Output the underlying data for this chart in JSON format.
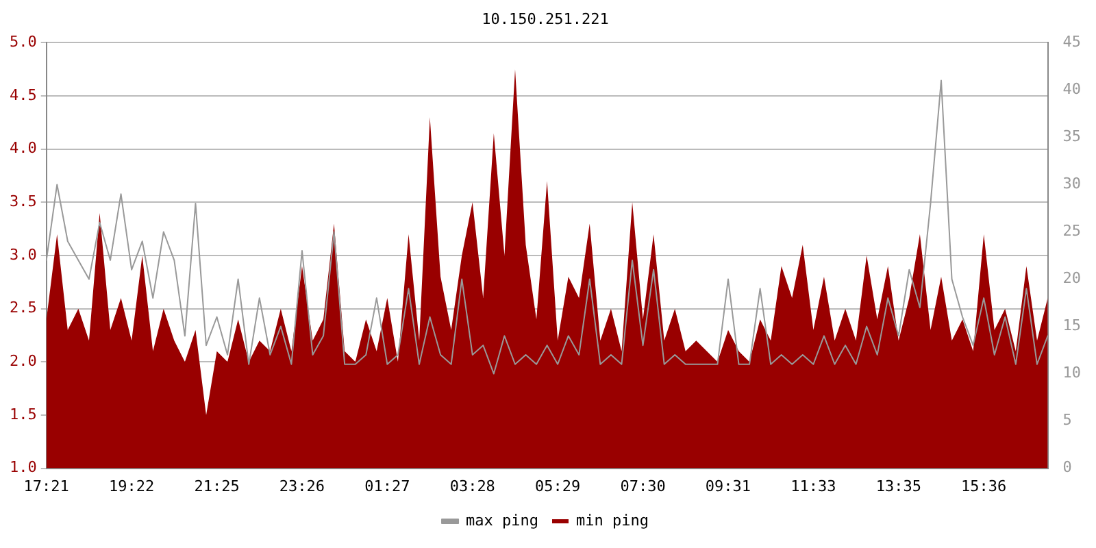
{
  "chart_data": {
    "type": "line",
    "title": "10.150.251.221",
    "categories": [
      "17:21",
      null,
      null,
      null,
      null,
      null,
      null,
      null,
      "19:22",
      null,
      null,
      null,
      null,
      null,
      null,
      null,
      "21:25",
      null,
      null,
      null,
      null,
      null,
      null,
      null,
      "23:26",
      null,
      null,
      null,
      null,
      null,
      null,
      null,
      "01:27",
      null,
      null,
      null,
      null,
      null,
      null,
      null,
      "03:28",
      null,
      null,
      null,
      null,
      null,
      null,
      null,
      "05:29",
      null,
      null,
      null,
      null,
      null,
      null,
      null,
      "07:30",
      null,
      null,
      null,
      null,
      null,
      null,
      null,
      "09:31",
      null,
      null,
      null,
      null,
      null,
      null,
      null,
      "11:33",
      null,
      null,
      null,
      null,
      null,
      null,
      null,
      "13:35",
      null,
      null,
      null,
      null,
      null,
      null,
      null,
      "15:36",
      null,
      null,
      null,
      null,
      null,
      null
    ],
    "series": [
      {
        "name": "min ping",
        "type": "area",
        "color": "#990000",
        "values": [
          2.4,
          3.2,
          2.3,
          2.5,
          2.2,
          3.4,
          2.3,
          2.6,
          2.2,
          3.0,
          2.1,
          2.5,
          2.2,
          2.0,
          2.3,
          1.5,
          2.1,
          2.0,
          2.4,
          2.0,
          2.2,
          2.1,
          2.5,
          2.1,
          2.9,
          2.2,
          2.4,
          3.3,
          2.1,
          2.0,
          2.4,
          2.1,
          2.6,
          2.0,
          3.2,
          2.2,
          4.3,
          2.8,
          2.3,
          3.0,
          3.5,
          2.6,
          4.15,
          3.0,
          4.75,
          3.1,
          2.4,
          3.7,
          2.2,
          2.8,
          2.6,
          3.3,
          2.2,
          2.5,
          2.1,
          3.5,
          2.4,
          3.2,
          2.2,
          2.5,
          2.1,
          2.2,
          2.1,
          2.0,
          2.3,
          2.1,
          2.0,
          2.4,
          2.2,
          2.9,
          2.6,
          3.1,
          2.3,
          2.8,
          2.2,
          2.5,
          2.2,
          3.0,
          2.4,
          2.9,
          2.2,
          2.6,
          3.2,
          2.3,
          2.8,
          2.2,
          2.4,
          2.1,
          3.2,
          2.3,
          2.5,
          2.1,
          2.9,
          2.2,
          2.6
        ]
      },
      {
        "name": "max ping",
        "type": "line",
        "axis": "y2",
        "color": "#999999",
        "values": [
          22,
          30,
          24,
          22,
          20,
          26,
          22,
          29,
          21,
          24,
          18,
          25,
          22,
          14,
          28,
          13,
          16,
          12,
          20,
          11,
          18,
          12,
          15,
          11,
          23,
          12,
          14,
          25,
          11,
          11,
          12,
          18,
          11,
          12,
          19,
          11,
          16,
          12,
          11,
          20,
          12,
          13,
          10,
          14,
          11,
          12,
          11,
          13,
          11,
          14,
          12,
          20,
          11,
          12,
          11,
          22,
          13,
          21,
          11,
          12,
          11,
          11,
          11,
          11,
          20,
          11,
          11,
          19,
          11,
          12,
          11,
          12,
          11,
          14,
          11,
          13,
          11,
          15,
          12,
          18,
          14,
          21,
          17,
          28,
          41,
          20,
          16,
          13,
          18,
          12,
          16,
          11,
          19,
          11,
          14
        ]
      }
    ],
    "ylim": [
      1,
      5
    ],
    "yticks": [
      {
        "value": 1,
        "label": "1.0"
      },
      {
        "value": 1.5,
        "label": "1.5"
      },
      {
        "value": 2,
        "label": "2.0"
      },
      {
        "value": 2.5,
        "label": "2.5"
      },
      {
        "value": 3,
        "label": "3.0"
      },
      {
        "value": 3.5,
        "label": "3.5"
      },
      {
        "value": 4,
        "label": "4.0"
      },
      {
        "value": 4.5,
        "label": "4.5"
      },
      {
        "value": 5,
        "label": "5.0"
      }
    ],
    "y2lim": [
      0,
      45
    ],
    "y2ticks": [
      0,
      5,
      10,
      15,
      20,
      25,
      30,
      35,
      40,
      45
    ],
    "grid": "y",
    "legend": "bottom",
    "marker": "none",
    "line_style": "solid"
  }
}
